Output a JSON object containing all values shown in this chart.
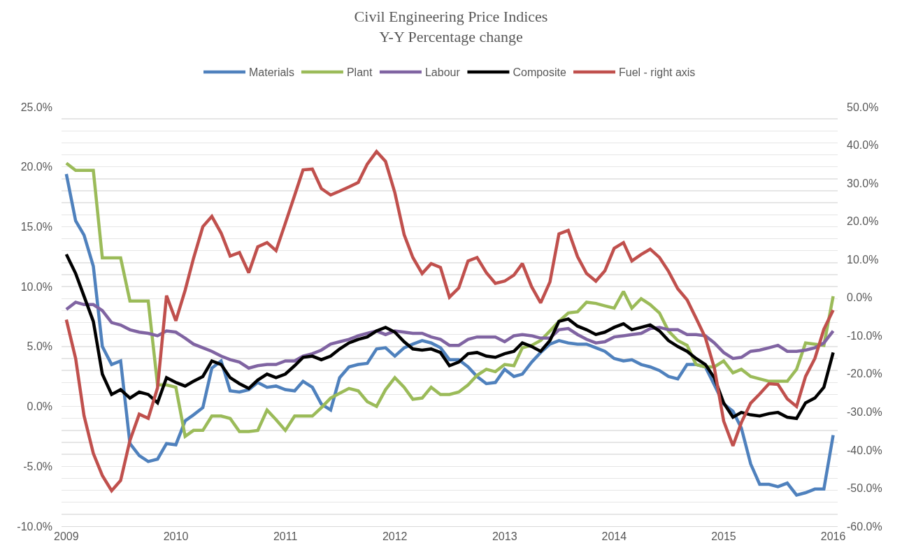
{
  "chart_data": {
    "type": "line",
    "title": "Civil Engineering Price Indices",
    "subtitle": "Y-Y Percentage change",
    "x": [
      "2009-01",
      "2009-02",
      "2009-03",
      "2009-04",
      "2009-05",
      "2009-06",
      "2009-07",
      "2009-08",
      "2009-09",
      "2009-10",
      "2009-11",
      "2009-12",
      "2010-01",
      "2010-02",
      "2010-03",
      "2010-04",
      "2010-05",
      "2010-06",
      "2010-07",
      "2010-08",
      "2010-09",
      "2010-10",
      "2010-11",
      "2010-12",
      "2011-01",
      "2011-02",
      "2011-03",
      "2011-04",
      "2011-05",
      "2011-06",
      "2011-07",
      "2011-08",
      "2011-09",
      "2011-10",
      "2011-11",
      "2011-12",
      "2012-01",
      "2012-02",
      "2012-03",
      "2012-04",
      "2012-05",
      "2012-06",
      "2012-07",
      "2012-08",
      "2012-09",
      "2012-10",
      "2012-11",
      "2012-12",
      "2013-01",
      "2013-02",
      "2013-03",
      "2013-04",
      "2013-05",
      "2013-06",
      "2013-07",
      "2013-08",
      "2013-09",
      "2013-10",
      "2013-11",
      "2013-12",
      "2014-01",
      "2014-02",
      "2014-03",
      "2014-04",
      "2014-05",
      "2014-06",
      "2014-07",
      "2014-08",
      "2014-09",
      "2014-10",
      "2014-11",
      "2014-12",
      "2015-01",
      "2015-02",
      "2015-03",
      "2015-04",
      "2015-05",
      "2015-06",
      "2015-07",
      "2015-08",
      "2015-09",
      "2015-10",
      "2015-11",
      "2015-12",
      "2016-01"
    ],
    "series": [
      {
        "name": "Materials",
        "color": "#4f81bd",
        "values": [
          19.4,
          15.5,
          14.3,
          11.7,
          5.0,
          3.5,
          3.8,
          -3.1,
          -4.1,
          -4.6,
          -4.4,
          -3.1,
          -3.2,
          -1.2,
          -0.7,
          -0.1,
          3.2,
          3.8,
          1.3,
          1.2,
          1.4,
          2.0,
          1.6,
          1.7,
          1.4,
          1.3,
          2.1,
          1.6,
          0.2,
          -0.3,
          2.4,
          3.3,
          3.5,
          3.6,
          4.8,
          4.9,
          4.2,
          4.9,
          5.2,
          5.5,
          5.3,
          4.9,
          3.9,
          3.9,
          3.3,
          2.5,
          1.9,
          2.0,
          3.1,
          2.5,
          2.7,
          3.7,
          4.5,
          5.2,
          5.5,
          5.3,
          5.2,
          5.2,
          4.9,
          4.6,
          4.0,
          3.8,
          3.9,
          3.5,
          3.3,
          3.0,
          2.5,
          2.3,
          3.5,
          3.5,
          3.3,
          1.8,
          0.2,
          -0.4,
          -1.8,
          -4.8,
          -6.5,
          -6.5,
          -6.7,
          -6.4,
          -7.4,
          -7.2,
          -6.9,
          -6.9,
          -2.4
        ]
      },
      {
        "name": "Plant",
        "color": "#9bbb59",
        "values": [
          20.3,
          19.7,
          19.7,
          19.7,
          12.4,
          12.4,
          12.4,
          8.8,
          8.8,
          8.8,
          1.8,
          1.8,
          1.6,
          -2.5,
          -2.0,
          -2.0,
          -0.8,
          -0.8,
          -1.0,
          -2.1,
          -2.1,
          -2.0,
          -0.3,
          -1.1,
          -2.0,
          -0.8,
          -0.8,
          -0.8,
          -0.1,
          0.7,
          1.1,
          1.5,
          1.3,
          0.4,
          0.0,
          1.4,
          2.4,
          1.6,
          0.6,
          0.7,
          1.6,
          1.0,
          1.0,
          1.2,
          1.8,
          2.6,
          3.1,
          2.9,
          3.5,
          3.4,
          4.9,
          5.1,
          5.5,
          6.3,
          7.1,
          7.8,
          7.9,
          8.7,
          8.6,
          8.4,
          8.2,
          9.6,
          8.2,
          9.0,
          8.5,
          7.8,
          6.3,
          5.5,
          5.1,
          3.5,
          3.3,
          3.3,
          3.8,
          2.8,
          3.1,
          2.5,
          2.3,
          2.1,
          2.1,
          2.1,
          3.1,
          5.3,
          5.2,
          5.1,
          9.2
        ]
      },
      {
        "name": "Labour",
        "color": "#8064a2",
        "values": [
          8.1,
          8.7,
          8.5,
          8.5,
          8.0,
          7.0,
          6.8,
          6.4,
          6.2,
          6.1,
          5.9,
          6.3,
          6.2,
          5.7,
          5.2,
          4.9,
          4.6,
          4.2,
          3.9,
          3.7,
          3.2,
          3.4,
          3.5,
          3.5,
          3.8,
          3.8,
          4.2,
          4.4,
          4.7,
          5.2,
          5.4,
          5.6,
          5.9,
          6.1,
          6.3,
          6.0,
          6.3,
          6.2,
          6.1,
          6.1,
          5.8,
          5.6,
          5.1,
          5.1,
          5.6,
          5.8,
          5.8,
          5.8,
          5.4,
          5.9,
          6.0,
          5.9,
          5.7,
          5.7,
          6.4,
          6.5,
          6.0,
          5.6,
          5.3,
          5.4,
          5.8,
          5.9,
          6.0,
          6.1,
          6.5,
          6.6,
          6.4,
          6.4,
          6.0,
          6.0,
          5.9,
          5.3,
          4.5,
          4.0,
          4.1,
          4.6,
          4.7,
          4.9,
          5.1,
          4.6,
          4.6,
          4.7,
          4.9,
          5.3,
          6.3
        ]
      },
      {
        "name": "Composite",
        "color": "#000000",
        "values": [
          12.7,
          11.1,
          9.2,
          7.1,
          2.7,
          1.0,
          1.4,
          0.7,
          1.2,
          1.0,
          0.3,
          2.4,
          2.0,
          1.7,
          2.1,
          2.5,
          3.8,
          3.5,
          2.4,
          1.9,
          1.5,
          2.2,
          2.7,
          2.4,
          2.7,
          3.4,
          4.1,
          4.2,
          3.9,
          4.2,
          4.8,
          5.3,
          5.6,
          5.8,
          6.3,
          6.6,
          6.2,
          5.4,
          4.8,
          4.7,
          4.8,
          4.5,
          3.4,
          3.7,
          4.4,
          4.5,
          4.2,
          4.1,
          4.4,
          4.6,
          5.3,
          5.0,
          4.6,
          5.5,
          7.1,
          7.3,
          6.7,
          6.4,
          6.0,
          6.2,
          6.6,
          6.9,
          6.4,
          6.6,
          6.8,
          6.3,
          5.5,
          5.0,
          4.6,
          4.0,
          3.5,
          2.4,
          0.3,
          -0.9,
          -0.5,
          -0.7,
          -0.8,
          -0.6,
          -0.5,
          -0.9,
          -1.0,
          0.3,
          0.7,
          1.6,
          4.5
        ]
      },
      {
        "name": "Fuel - right axis",
        "color": "#c0504d",
        "axis": "y2",
        "values": [
          -5.8,
          -16.0,
          -31.0,
          -40.9,
          -46.7,
          -50.7,
          -48.0,
          -37.5,
          -30.6,
          -31.7,
          -23.7,
          0.5,
          -6.1,
          1.9,
          10.3,
          18.6,
          21.3,
          16.9,
          10.9,
          11.8,
          6.5,
          13.3,
          14.4,
          12.3,
          19.5,
          26.8,
          33.5,
          33.7,
          28.6,
          26.9,
          27.9,
          29.0,
          30.2,
          35.0,
          38.3,
          35.7,
          27.5,
          16.5,
          10.5,
          6.3,
          8.9,
          7.9,
          0.1,
          2.5,
          9.6,
          10.5,
          6.5,
          3.7,
          4.3,
          5.9,
          8.9,
          2.8,
          -1.4,
          4.1,
          16.7,
          17.6,
          10.7,
          6.3,
          4.3,
          7.0,
          12.9,
          14.4,
          9.6,
          11.3,
          12.7,
          10.5,
          6.9,
          2.3,
          -0.6,
          -5.4,
          -10.5,
          -18.5,
          -32.4,
          -38.9,
          -32.8,
          -27.7,
          -25.3,
          -22.6,
          -22.8,
          -26.6,
          -28.6,
          -20.7,
          -16.0,
          -8.3,
          -3.3
        ]
      }
    ],
    "xlim": [
      "2008-12-16",
      "2016-01-16"
    ],
    "xticks": [
      {
        "value": "2009-01",
        "label": "2009"
      },
      {
        "value": "2010-01",
        "label": "2010"
      },
      {
        "value": "2011-01",
        "label": "2011"
      },
      {
        "value": "2012-01",
        "label": "2012"
      },
      {
        "value": "2013-01",
        "label": "2013"
      },
      {
        "value": "2014-01",
        "label": "2014"
      },
      {
        "value": "2015-01",
        "label": "2015"
      },
      {
        "value": "2016-01",
        "label": "2016"
      }
    ],
    "ylim": [
      -10,
      25
    ],
    "yticks": [
      {
        "value": -10,
        "label": "-10.0%"
      },
      {
        "value": -9,
        "label": null
      },
      {
        "value": -8,
        "label": null
      },
      {
        "value": -7,
        "label": null
      },
      {
        "value": -6,
        "label": null
      },
      {
        "value": -5,
        "label": "-5.0%"
      },
      {
        "value": -4,
        "label": null
      },
      {
        "value": -3,
        "label": null
      },
      {
        "value": -2,
        "label": null
      },
      {
        "value": -1,
        "label": null
      },
      {
        "value": 0,
        "label": "0.0%"
      },
      {
        "value": 1,
        "label": null
      },
      {
        "value": 2,
        "label": null
      },
      {
        "value": 3,
        "label": null
      },
      {
        "value": 4,
        "label": null
      },
      {
        "value": 5,
        "label": "5.0%"
      },
      {
        "value": 6,
        "label": null
      },
      {
        "value": 7,
        "label": null
      },
      {
        "value": 8,
        "label": null
      },
      {
        "value": 9,
        "label": null
      },
      {
        "value": 10,
        "label": "10.0%"
      },
      {
        "value": 11,
        "label": null
      },
      {
        "value": 12,
        "label": null
      },
      {
        "value": 13,
        "label": null
      },
      {
        "value": 14,
        "label": null
      },
      {
        "value": 15,
        "label": "15.0%"
      },
      {
        "value": 16,
        "label": null
      },
      {
        "value": 17,
        "label": null
      },
      {
        "value": 18,
        "label": null
      },
      {
        "value": 19,
        "label": null
      },
      {
        "value": 20,
        "label": "20.0%"
      },
      {
        "value": 21,
        "label": null
      },
      {
        "value": 22,
        "label": null
      },
      {
        "value": 23,
        "label": null
      },
      {
        "value": 24,
        "label": null
      },
      {
        "value": 25,
        "label": "25.0%"
      }
    ],
    "y2lim": [
      -60,
      50
    ],
    "y2ticks": [
      {
        "value": -60,
        "label": "-60.0%"
      },
      {
        "value": -50,
        "label": "-50.0%"
      },
      {
        "value": -40,
        "label": "-40.0%"
      },
      {
        "value": -30,
        "label": "-30.0%"
      },
      {
        "value": -20,
        "label": "-20.0%"
      },
      {
        "value": -10,
        "label": "-10.0%"
      },
      {
        "value": 0,
        "label": "0.0%"
      },
      {
        "value": 10,
        "label": "10.0%"
      },
      {
        "value": 20,
        "label": "20.0%"
      },
      {
        "value": 30,
        "label": "30.0%"
      },
      {
        "value": 40,
        "label": "40.0%"
      },
      {
        "value": 50,
        "label": "50.0%"
      }
    ],
    "grid": "y",
    "legend": "top",
    "marker": "none",
    "line_style": "solid"
  }
}
